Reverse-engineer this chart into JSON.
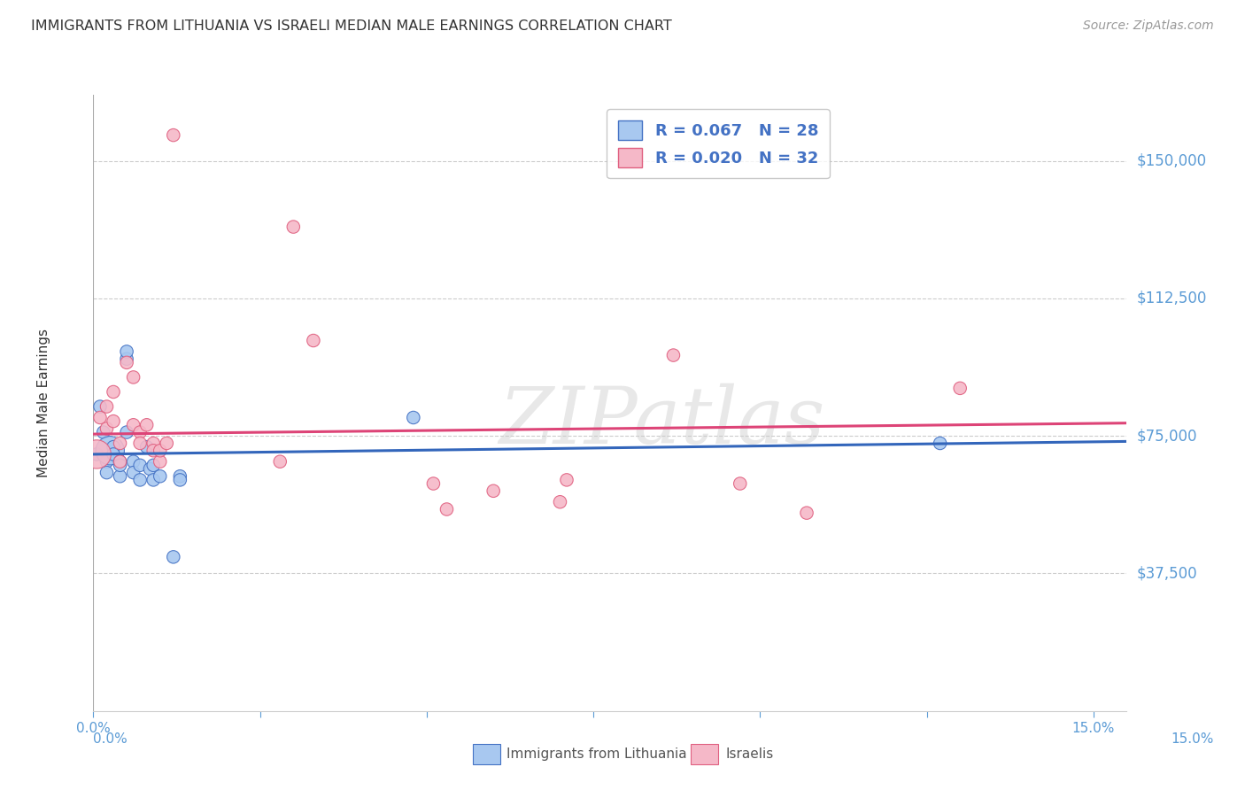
{
  "title": "IMMIGRANTS FROM LITHUANIA VS ISRAELI MEDIAN MALE EARNINGS CORRELATION CHART",
  "source": "Source: ZipAtlas.com",
  "ylabel": "Median Male Earnings",
  "ytick_labels": [
    "$150,000",
    "$112,500",
    "$75,000",
    "$37,500"
  ],
  "ytick_values": [
    150000,
    112500,
    75000,
    37500
  ],
  "ymin": 0,
  "ymax": 168000,
  "xmin": 0.0,
  "xmax": 0.155,
  "watermark": "ZIPatlas",
  "legend_r1": "R = 0.067",
  "legend_n1": "N = 28",
  "legend_r2": "R = 0.020",
  "legend_n2": "N = 32",
  "blue_scatter_x": [
    0.0005,
    0.001,
    0.0015,
    0.002,
    0.002,
    0.0025,
    0.003,
    0.003,
    0.004,
    0.004,
    0.004,
    0.005,
    0.005,
    0.005,
    0.006,
    0.006,
    0.007,
    0.007,
    0.008,
    0.0085,
    0.009,
    0.009,
    0.01,
    0.012,
    0.013,
    0.013,
    0.048,
    0.127
  ],
  "blue_scatter_y": [
    70000,
    83000,
    76000,
    68000,
    65000,
    71000,
    72000,
    70000,
    68000,
    64000,
    67000,
    96000,
    98000,
    76000,
    68000,
    65000,
    67000,
    63000,
    72000,
    66000,
    63000,
    67000,
    64000,
    42000,
    64000,
    63000,
    80000,
    73000
  ],
  "blue_scatter_sizes": [
    60,
    60,
    60,
    60,
    60,
    300,
    60,
    60,
    60,
    60,
    60,
    60,
    60,
    60,
    60,
    60,
    60,
    60,
    60,
    60,
    60,
    60,
    60,
    60,
    60,
    60,
    60,
    60
  ],
  "pink_scatter_x": [
    0.0005,
    0.001,
    0.002,
    0.002,
    0.003,
    0.003,
    0.004,
    0.004,
    0.005,
    0.006,
    0.006,
    0.007,
    0.007,
    0.008,
    0.009,
    0.009,
    0.01,
    0.01,
    0.011,
    0.012,
    0.028,
    0.03,
    0.033,
    0.051,
    0.053,
    0.06,
    0.07,
    0.071,
    0.087,
    0.097,
    0.107,
    0.13
  ],
  "pink_scatter_y": [
    70000,
    80000,
    83000,
    77000,
    87000,
    79000,
    73000,
    68000,
    95000,
    91000,
    78000,
    76000,
    73000,
    78000,
    73000,
    71000,
    68000,
    71000,
    73000,
    157000,
    68000,
    132000,
    101000,
    62000,
    55000,
    60000,
    57000,
    63000,
    97000,
    62000,
    54000,
    88000
  ],
  "pink_scatter_sizes": [
    300,
    60,
    60,
    60,
    60,
    60,
    60,
    60,
    60,
    60,
    60,
    60,
    60,
    60,
    60,
    60,
    60,
    60,
    60,
    60,
    60,
    60,
    60,
    60,
    60,
    60,
    60,
    60,
    60,
    60,
    60,
    60
  ],
  "blue_line_x": [
    0.0,
    0.155
  ],
  "blue_line_y": [
    70000,
    73500
  ],
  "pink_line_x": [
    0.0,
    0.155
  ],
  "pink_line_y": [
    75500,
    78500
  ],
  "blue_fill_color": "#A8C8F0",
  "pink_fill_color": "#F5B8C8",
  "blue_edge_color": "#4472C4",
  "pink_edge_color": "#E06080",
  "blue_line_color": "#3366BB",
  "pink_line_color": "#DD4477",
  "axis_label_color": "#5B9BD5",
  "grid_color": "#CCCCCC",
  "title_color": "#333333",
  "source_color": "#999999",
  "background_color": "#FFFFFF",
  "legend_text_color": "#4472C4",
  "bottom_legend_text_color": "#555555",
  "xtick_positions": [
    0.0,
    0.025,
    0.05,
    0.075,
    0.1,
    0.125,
    0.15
  ],
  "xtick_labels_display": [
    "0.0%",
    "",
    "",
    "",
    "",
    "",
    "15.0%"
  ],
  "bottom_legend_label1": "Immigrants from Lithuania",
  "bottom_legend_label2": "Israelis"
}
